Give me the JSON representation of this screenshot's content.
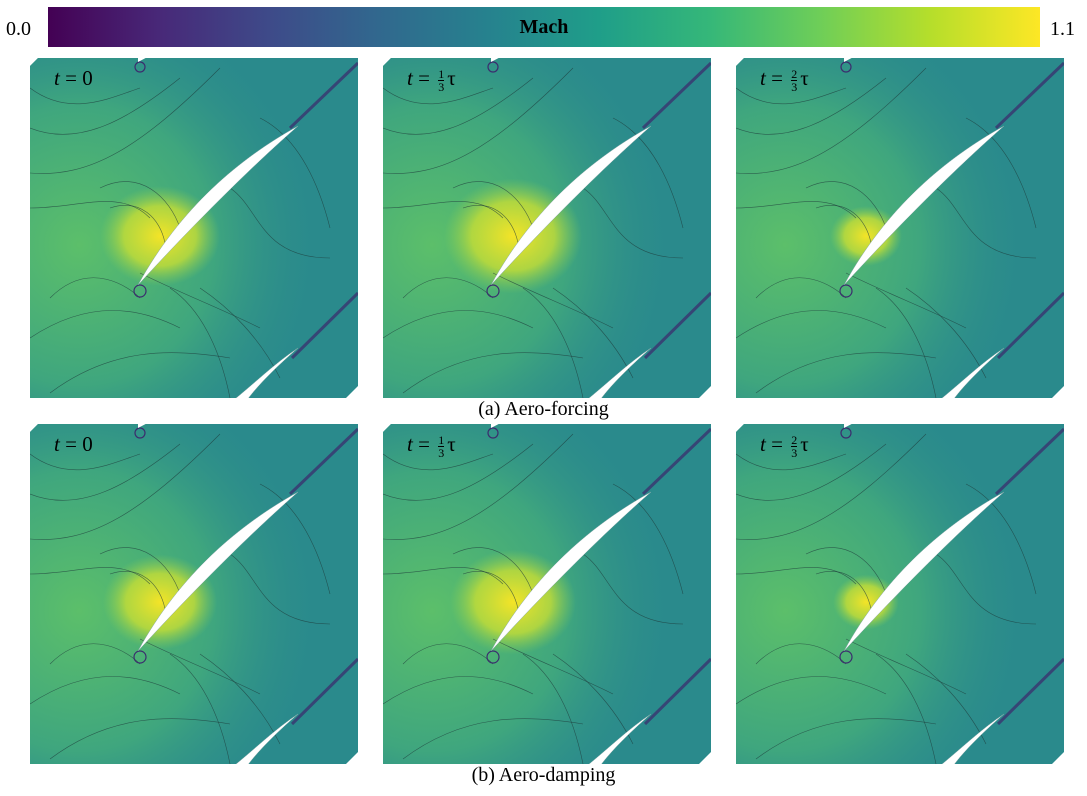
{
  "colorbar": {
    "title": "Mach",
    "min_label": "0.0",
    "max_label": "1.1",
    "colormap": [
      "#440154",
      "#482878",
      "#3e4a89",
      "#31688e",
      "#26828e",
      "#1f9e89",
      "#35b779",
      "#6ece58",
      "#b5de2b",
      "#fde725"
    ]
  },
  "rows": [
    {
      "caption": "(a) Aero-forcing",
      "panels": [
        {
          "t_var": "t",
          "eq": "=",
          "value": "0",
          "num": "",
          "den": "",
          "tau": ""
        },
        {
          "t_var": "t",
          "eq": "=",
          "value": "",
          "num": "1",
          "den": "3",
          "tau": "τ"
        },
        {
          "t_var": "t",
          "eq": "=",
          "value": "",
          "num": "2",
          "den": "3",
          "tau": "τ"
        }
      ]
    },
    {
      "caption": "(b) Aero-damping",
      "panels": [
        {
          "t_var": "t",
          "eq": "=",
          "value": "0",
          "num": "",
          "den": "",
          "tau": ""
        },
        {
          "t_var": "t",
          "eq": "=",
          "value": "",
          "num": "1",
          "den": "3",
          "tau": "τ"
        },
        {
          "t_var": "t",
          "eq": "=",
          "value": "",
          "num": "2",
          "den": "3",
          "tau": "τ"
        }
      ]
    }
  ],
  "colors": {
    "field_base": "#2a8a8c",
    "field_upstream": "#5cbf6a",
    "hot_spot": "#f4e427",
    "shock_dark": "#3b2d6e",
    "contour": "#1e3b3b",
    "blade": "#ffffff"
  }
}
